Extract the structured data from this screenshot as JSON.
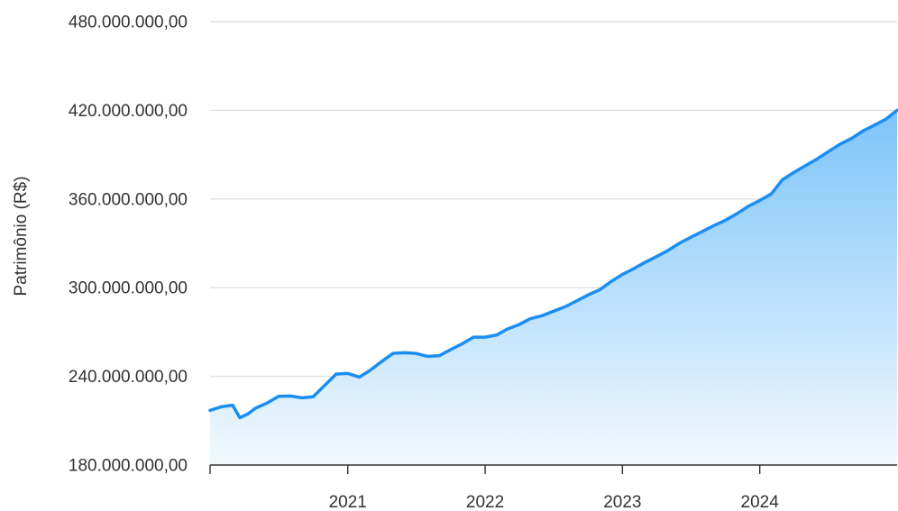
{
  "chart_data": {
    "type": "area",
    "ylabel": "Patrimônio (R$)",
    "xlabel": "",
    "ylim": [
      180000000,
      480000000
    ],
    "y_ticks": [
      {
        "value": 180000000,
        "label": "180.000.000,00"
      },
      {
        "value": 240000000,
        "label": "240.000.000,00"
      },
      {
        "value": 300000000,
        "label": "300.000.000,00"
      },
      {
        "value": 360000000,
        "label": "360.000.000,00"
      },
      {
        "value": 420000000,
        "label": "420.000.000,00"
      },
      {
        "value": 480000000,
        "label": "480.000.000,00"
      }
    ],
    "xlim": [
      "2020-01-01",
      "2024-12-31"
    ],
    "x_ticks": [
      {
        "value": "2021-01-01",
        "label": "2021"
      },
      {
        "value": "2022-01-01",
        "label": "2022"
      },
      {
        "value": "2023-01-01",
        "label": "2023"
      },
      {
        "value": "2024-01-01",
        "label": "2024"
      }
    ],
    "grid": true,
    "colors": {
      "line": "#1b8ef2",
      "fill_top": "#7cc4f8",
      "fill_bottom": "#f3f9fe",
      "grid": "#dde1e6",
      "axis": "#333333"
    },
    "series": [
      {
        "x": [
          "2020-01-01",
          "2020-02-01",
          "2020-03-01",
          "2020-03-20",
          "2020-04-10",
          "2020-05-01",
          "2020-06-01",
          "2020-07-01",
          "2020-08-01",
          "2020-09-01",
          "2020-10-01",
          "2020-11-01",
          "2020-12-01",
          "2021-01-01",
          "2021-02-01",
          "2021-03-01",
          "2021-04-01",
          "2021-05-01",
          "2021-06-01",
          "2021-07-01",
          "2021-08-01",
          "2021-09-01",
          "2021-10-01",
          "2021-11-01",
          "2021-12-01",
          "2022-01-01",
          "2022-02-01",
          "2022-03-01",
          "2022-04-01",
          "2022-05-01",
          "2022-06-01",
          "2022-07-01",
          "2022-08-01",
          "2022-09-01",
          "2022-10-01",
          "2022-11-01",
          "2022-12-01",
          "2023-01-01",
          "2023-02-01",
          "2023-03-01",
          "2023-04-01",
          "2023-05-01",
          "2023-06-01",
          "2023-07-01",
          "2023-08-01",
          "2023-09-01",
          "2023-10-01",
          "2023-11-01",
          "2023-12-01",
          "2024-01-01",
          "2024-02-01",
          "2024-03-01",
          "2024-04-01",
          "2024-05-01",
          "2024-06-01",
          "2024-07-01",
          "2024-08-01",
          "2024-09-01",
          "2024-10-01",
          "2024-11-01",
          "2024-12-01",
          "2024-12-31"
        ],
        "values": [
          217000000,
          219500000,
          220500000,
          212000000,
          214500000,
          218500000,
          222000000,
          226500000,
          226700000,
          225500000,
          226200000,
          234000000,
          241500000,
          242000000,
          239500000,
          244000000,
          250000000,
          255500000,
          256000000,
          255500000,
          253500000,
          254000000,
          258000000,
          262000000,
          266500000,
          266500000,
          268000000,
          272000000,
          275000000,
          279000000,
          281000000,
          284000000,
          287000000,
          291000000,
          295000000,
          298500000,
          304000000,
          309000000,
          313000000,
          317000000,
          321000000,
          325000000,
          330000000,
          334000000,
          338000000,
          342000000,
          345500000,
          350000000,
          355000000,
          359000000,
          363500000,
          373000000,
          378000000,
          382500000,
          387000000,
          392000000,
          397000000,
          401000000,
          406000000,
          410000000,
          414000000,
          420000000
        ]
      }
    ]
  }
}
